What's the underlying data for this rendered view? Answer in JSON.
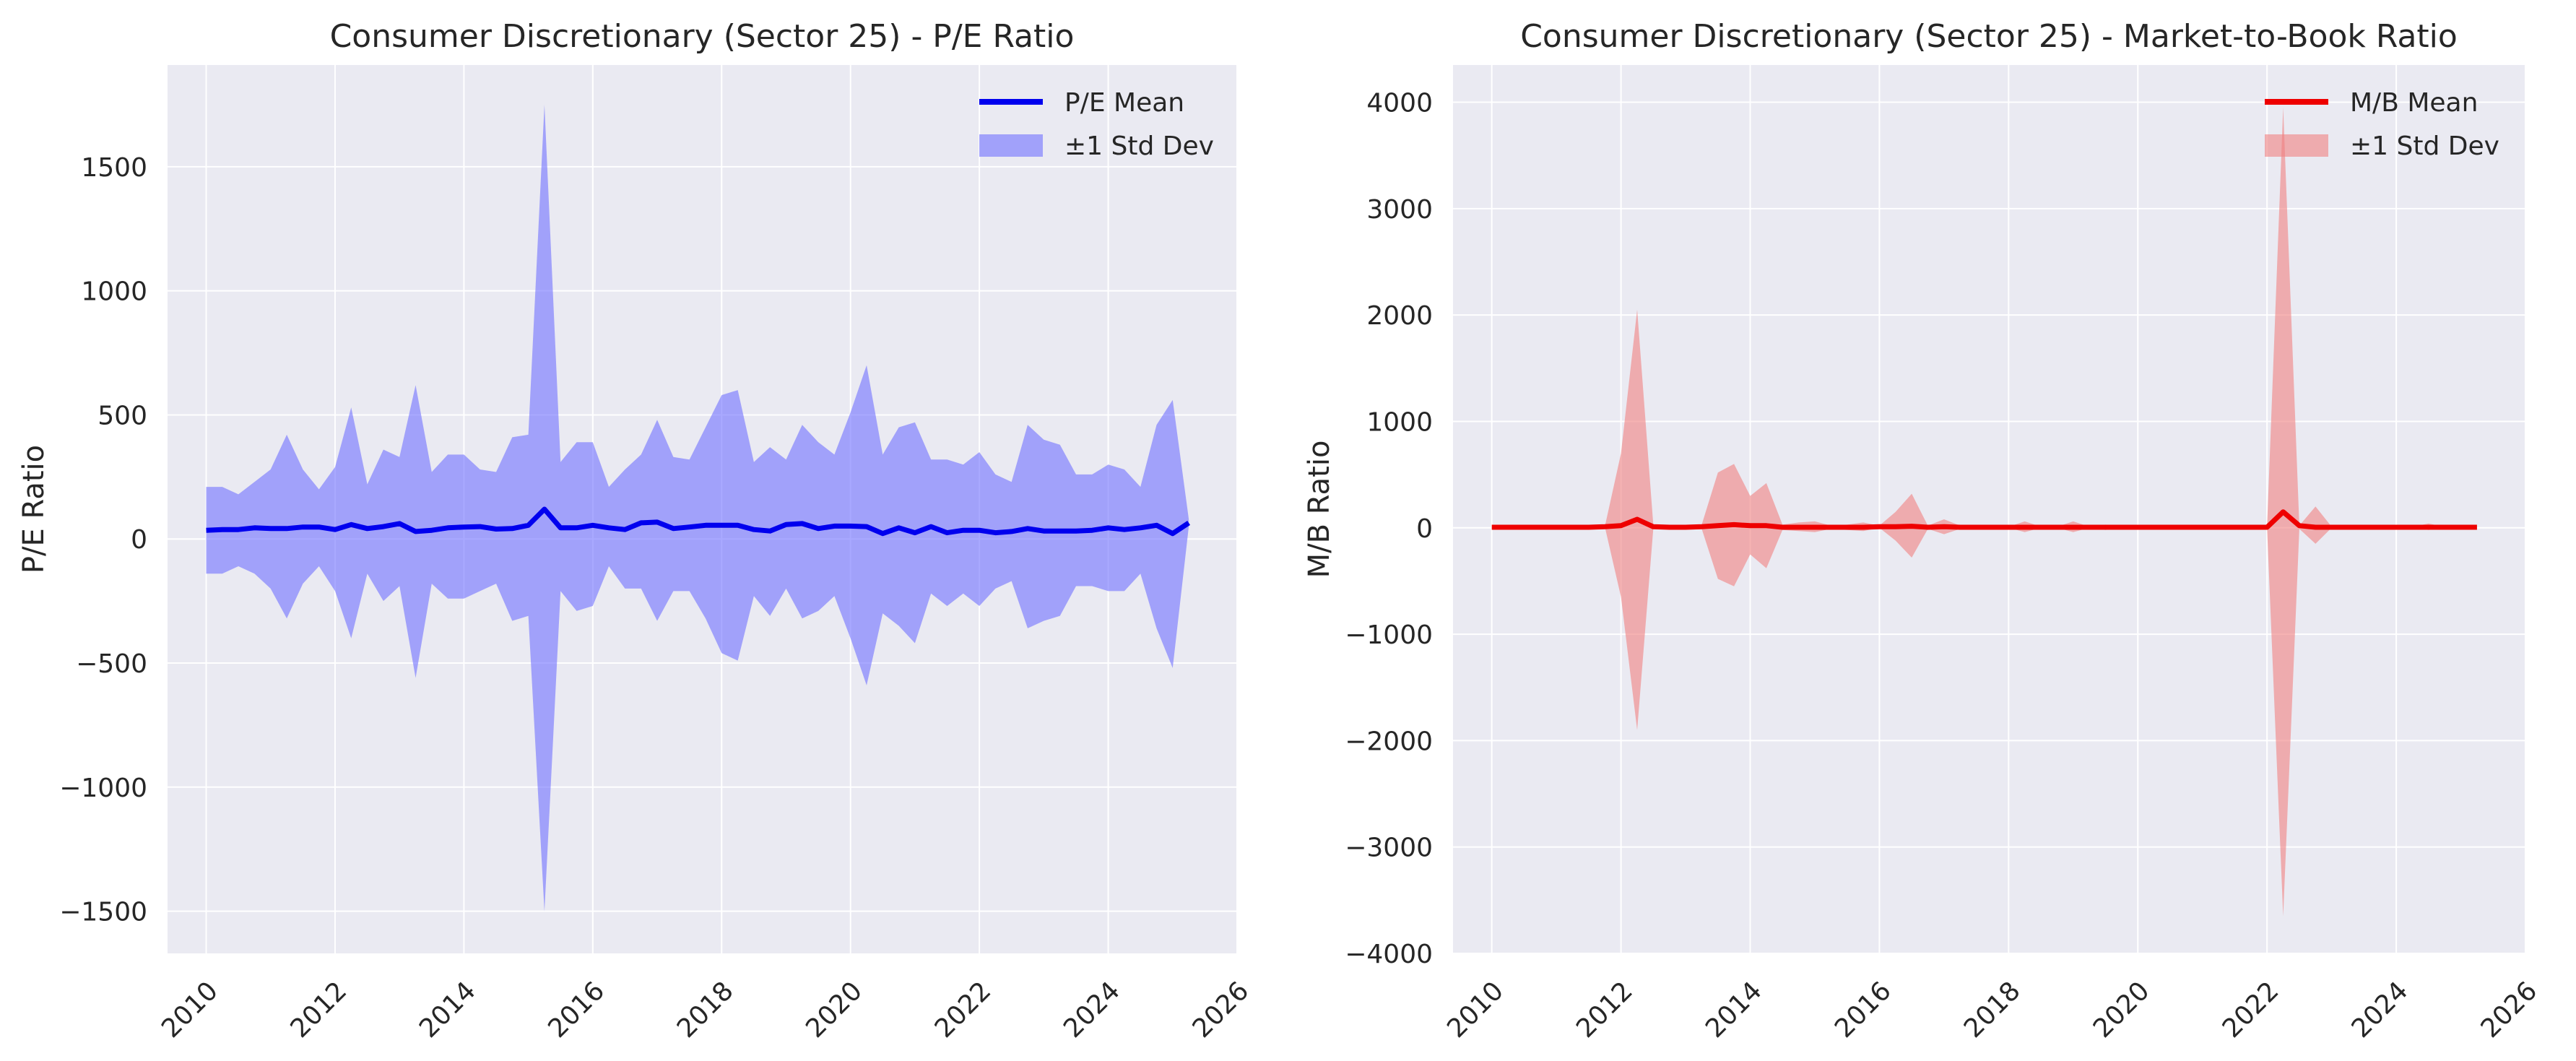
{
  "chart_data": [
    {
      "type": "line",
      "title": "Consumer Discretionary (Sector 25) - P/E Ratio",
      "xlabel": "",
      "ylabel": "P/E Ratio",
      "xlim": [
        2009.4,
        2026.0
      ],
      "ylim": [
        -1670,
        1910
      ],
      "xticks": [
        2010,
        2012,
        2014,
        2016,
        2018,
        2020,
        2022,
        2024,
        2026
      ],
      "yticks": [
        -1500,
        -1000,
        -500,
        0,
        500,
        1000,
        1500
      ],
      "ytick_labels": [
        "−1500",
        "−1000",
        "−500",
        "0",
        "500",
        "1000",
        "1500"
      ],
      "grid": true,
      "legend_position": "top-right",
      "mean_color": "#0000ee",
      "band_color": "#7070ff",
      "series": [
        {
          "name": "P/E Mean",
          "x": [
            2010.0,
            2010.25,
            2010.5,
            2010.75,
            2011.0,
            2011.25,
            2011.5,
            2011.75,
            2012.0,
            2012.25,
            2012.5,
            2012.75,
            2013.0,
            2013.25,
            2013.5,
            2013.75,
            2014.0,
            2014.25,
            2014.5,
            2014.75,
            2015.0,
            2015.25,
            2015.5,
            2015.75,
            2016.0,
            2016.25,
            2016.5,
            2016.75,
            2017.0,
            2017.25,
            2017.5,
            2017.75,
            2018.0,
            2018.25,
            2018.5,
            2018.75,
            2019.0,
            2019.25,
            2019.5,
            2019.75,
            2020.0,
            2020.25,
            2020.5,
            2020.75,
            2021.0,
            2021.25,
            2021.5,
            2021.75,
            2022.0,
            2022.25,
            2022.5,
            2022.75,
            2023.0,
            2023.25,
            2023.5,
            2023.75,
            2024.0,
            2024.25,
            2024.5,
            2024.75,
            2025.0,
            2025.25
          ],
          "values": [
            35,
            38,
            38,
            45,
            42,
            42,
            48,
            48,
            38,
            58,
            42,
            50,
            62,
            30,
            35,
            45,
            48,
            50,
            40,
            42,
            55,
            120,
            45,
            45,
            55,
            45,
            38,
            65,
            68,
            42,
            48,
            55,
            55,
            55,
            38,
            32,
            58,
            62,
            42,
            52,
            52,
            50,
            22,
            45,
            25,
            50,
            25,
            35,
            35,
            25,
            30,
            42,
            32,
            32,
            32,
            35,
            45,
            38,
            45,
            55,
            22,
            65
          ]
        },
        {
          "name": "±1 Std Dev",
          "upper": [
            210,
            210,
            180,
            230,
            280,
            420,
            280,
            200,
            290,
            530,
            220,
            360,
            330,
            620,
            270,
            340,
            340,
            280,
            270,
            410,
            420,
            1750,
            310,
            390,
            390,
            210,
            280,
            340,
            480,
            330,
            320,
            450,
            580,
            600,
            310,
            370,
            320,
            460,
            390,
            340,
            510,
            700,
            340,
            450,
            470,
            320,
            320,
            300,
            350,
            260,
            230,
            460,
            400,
            380,
            260,
            260,
            300,
            280,
            210,
            460,
            560,
            80
          ],
          "lower": [
            -140,
            -140,
            -110,
            -140,
            -200,
            -320,
            -180,
            -110,
            -210,
            -400,
            -140,
            -250,
            -190,
            -560,
            -180,
            -240,
            -240,
            -210,
            -180,
            -330,
            -310,
            -1500,
            -210,
            -290,
            -270,
            -110,
            -200,
            -200,
            -330,
            -210,
            -210,
            -320,
            -460,
            -490,
            -230,
            -310,
            -200,
            -320,
            -290,
            -230,
            -400,
            -590,
            -300,
            -350,
            -420,
            -220,
            -270,
            -220,
            -270,
            -200,
            -170,
            -360,
            -330,
            -310,
            -190,
            -190,
            -210,
            -210,
            -140,
            -360,
            -520,
            50
          ]
        }
      ]
    },
    {
      "type": "line",
      "title": "Consumer Discretionary (Sector 25) - Market-to-Book Ratio",
      "xlabel": "",
      "ylabel": "M/B Ratio",
      "xlim": [
        2009.4,
        2026.0
      ],
      "ylim": [
        -4000,
        4350
      ],
      "xticks": [
        2010,
        2012,
        2014,
        2016,
        2018,
        2020,
        2022,
        2024,
        2026
      ],
      "yticks": [
        -4000,
        -3000,
        -2000,
        -1000,
        0,
        1000,
        2000,
        3000,
        4000
      ],
      "ytick_labels": [
        "−4000",
        "−3000",
        "−2000",
        "−1000",
        "0",
        "1000",
        "2000",
        "3000",
        "4000"
      ],
      "grid": true,
      "legend_position": "top-right",
      "mean_color": "#ee0000",
      "band_color": "#f08080",
      "series": [
        {
          "name": "M/B Mean",
          "x": [
            2010.0,
            2010.25,
            2010.5,
            2010.75,
            2011.0,
            2011.25,
            2011.5,
            2011.75,
            2012.0,
            2012.25,
            2012.5,
            2012.75,
            2013.0,
            2013.25,
            2013.5,
            2013.75,
            2014.0,
            2014.25,
            2014.5,
            2014.75,
            2015.0,
            2015.25,
            2015.5,
            2015.75,
            2016.0,
            2016.25,
            2016.5,
            2016.75,
            2017.0,
            2017.25,
            2017.5,
            2017.75,
            2018.0,
            2018.25,
            2018.5,
            2018.75,
            2019.0,
            2019.25,
            2019.5,
            2019.75,
            2020.0,
            2020.25,
            2020.5,
            2020.75,
            2021.0,
            2021.25,
            2021.5,
            2021.75,
            2022.0,
            2022.25,
            2022.5,
            2022.75,
            2023.0,
            2023.25,
            2023.5,
            2023.75,
            2024.0,
            2024.25,
            2024.5,
            2024.75,
            2025.0,
            2025.25
          ],
          "values": [
            5,
            5,
            5,
            5,
            5,
            5,
            5,
            10,
            20,
            80,
            10,
            5,
            5,
            10,
            20,
            30,
            20,
            20,
            5,
            5,
            5,
            5,
            5,
            5,
            10,
            10,
            15,
            5,
            10,
            5,
            5,
            5,
            5,
            5,
            5,
            5,
            5,
            5,
            5,
            5,
            5,
            5,
            5,
            5,
            5,
            5,
            5,
            5,
            5,
            150,
            20,
            5,
            5,
            5,
            5,
            5,
            5,
            5,
            5,
            5,
            5,
            5
          ]
        },
        {
          "name": "±1 Std Dev",
          "upper": [
            5,
            5,
            5,
            5,
            5,
            5,
            5,
            10,
            700,
            2050,
            30,
            20,
            10,
            30,
            520,
            600,
            300,
            420,
            30,
            50,
            60,
            20,
            30,
            50,
            20,
            150,
            320,
            20,
            80,
            20,
            10,
            20,
            10,
            60,
            10,
            10,
            60,
            10,
            30,
            10,
            10,
            10,
            10,
            10,
            10,
            10,
            10,
            10,
            10,
            3950,
            20,
            200,
            10,
            10,
            10,
            10,
            10,
            10,
            40,
            10,
            10,
            10
          ],
          "lower": [
            5,
            5,
            5,
            5,
            5,
            5,
            5,
            10,
            -650,
            -1900,
            -10,
            -10,
            0,
            -10,
            -480,
            -550,
            -250,
            -380,
            -20,
            -30,
            -40,
            -10,
            -20,
            -30,
            0,
            -120,
            -280,
            -10,
            -60,
            -10,
            0,
            -10,
            0,
            -40,
            0,
            0,
            -40,
            0,
            -20,
            0,
            0,
            0,
            0,
            0,
            0,
            0,
            0,
            0,
            0,
            -3650,
            -10,
            -150,
            0,
            0,
            0,
            0,
            0,
            0,
            -20,
            0,
            0,
            0
          ]
        }
      ]
    }
  ]
}
